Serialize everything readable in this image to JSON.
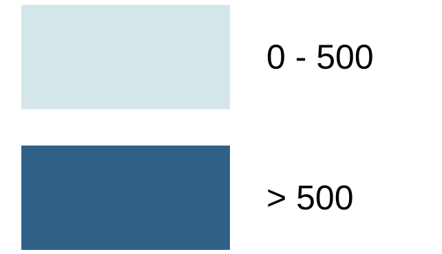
{
  "chart_data": {
    "type": "legend",
    "title": "",
    "entries": [
      {
        "label": "0 - 500",
        "color": "#d4e6ea"
      },
      {
        "label": "> 500",
        "color": "#2f6187"
      }
    ]
  }
}
